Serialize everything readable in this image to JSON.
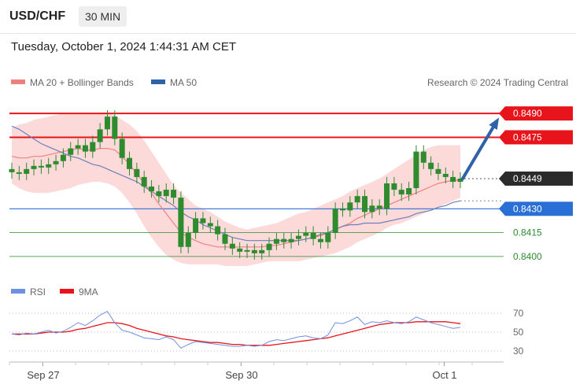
{
  "header": {
    "symbol": "USD/CHF",
    "timeframe": "30 MIN",
    "datetime": "Tuesday, October 1, 2024 1:44:31 AM CET"
  },
  "legend": {
    "ma20_label": "MA 20 + Bollinger Bands",
    "ma50_label": "MA 50",
    "copyright": "Research © 2024 Trading Central",
    "rsi_label": "RSI",
    "rsi_ma_label": "9MA"
  },
  "colors": {
    "resistance": "#e8141b",
    "support": "#2a6fd6",
    "target_green": "#2e8b2e",
    "candle": "#2e8b2e",
    "ma20": "#f08080",
    "bollinger": "#fbd4d4",
    "ma50": "#6f7fb8",
    "arrow": "#2f62a8",
    "rsi": "#6f8fe0",
    "rsi_ma": "#e8141b"
  },
  "chart_data": [
    {
      "type": "line",
      "title": "USD/CHF 30 MIN",
      "x_ticks": [
        "Sep 27",
        "Sep 30",
        "Oct 1"
      ],
      "ylim": [
        0.8394,
        0.8498
      ],
      "levels": [
        {
          "value": 0.849,
          "label": "0.8490",
          "style": "resistance"
        },
        {
          "value": 0.8475,
          "label": "0.8475",
          "style": "resistance"
        },
        {
          "value": 0.8449,
          "label": "0.8449",
          "style": "current"
        },
        {
          "value": 0.843,
          "label": "0.8430",
          "style": "support"
        },
        {
          "value": 0.8415,
          "label": "0.8415",
          "style": "target"
        },
        {
          "value": 0.84,
          "label": "0.8400",
          "style": "target"
        }
      ],
      "close": [
        0.8453,
        0.8452,
        0.8455,
        0.8457,
        0.8456,
        0.8458,
        0.846,
        0.8464,
        0.8468,
        0.847,
        0.8466,
        0.8472,
        0.848,
        0.8488,
        0.8474,
        0.8462,
        0.8455,
        0.845,
        0.8444,
        0.8441,
        0.8438,
        0.8442,
        0.8437,
        0.8406,
        0.8415,
        0.8424,
        0.8421,
        0.8419,
        0.8414,
        0.8408,
        0.8405,
        0.8403,
        0.8404,
        0.8402,
        0.8404,
        0.8408,
        0.8411,
        0.8409,
        0.8411,
        0.8413,
        0.8415,
        0.8411,
        0.8409,
        0.8415,
        0.843,
        0.8429,
        0.8434,
        0.8438,
        0.8428,
        0.8432,
        0.843,
        0.8446,
        0.8442,
        0.8439,
        0.8443,
        0.8466,
        0.8459,
        0.8455,
        0.8452,
        0.845,
        0.8447,
        0.8449
      ],
      "ma20": [
        0.8463,
        0.8462,
        0.8462,
        0.8463,
        0.8463,
        0.8464,
        0.8465,
        0.8466,
        0.8467,
        0.8468,
        0.8467,
        0.8467,
        0.8468,
        0.8468,
        0.8467,
        0.8463,
        0.8458,
        0.8452,
        0.8446,
        0.844,
        0.8433,
        0.8427,
        0.8421,
        0.8415,
        0.8412,
        0.841,
        0.8408,
        0.8407,
        0.8406,
        0.8406,
        0.8406,
        0.8406,
        0.8406,
        0.8406,
        0.8406,
        0.8407,
        0.8407,
        0.8408,
        0.8409,
        0.841,
        0.8411,
        0.8412,
        0.8413,
        0.8415,
        0.8417,
        0.8419,
        0.8421,
        0.8424,
        0.8426,
        0.8428,
        0.843,
        0.8432,
        0.8434,
        0.8436,
        0.8438,
        0.844,
        0.8442,
        0.8444,
        0.8446,
        0.8447,
        0.8448,
        0.8448
      ],
      "bb_upper": [
        0.8481,
        0.8483,
        0.8484,
        0.8486,
        0.8487,
        0.8488,
        0.8489,
        0.849,
        0.849,
        0.849,
        0.849,
        0.849,
        0.849,
        0.849,
        0.8489,
        0.8486,
        0.8483,
        0.8479,
        0.8473,
        0.8466,
        0.8459,
        0.8452,
        0.8445,
        0.844,
        0.8436,
        0.8432,
        0.843,
        0.8428,
        0.8425,
        0.8422,
        0.842,
        0.8418,
        0.8417,
        0.8418,
        0.8419,
        0.842,
        0.8421,
        0.8423,
        0.8425,
        0.8427,
        0.8428,
        0.843,
        0.8432,
        0.8434,
        0.8436,
        0.8438,
        0.8441,
        0.8443,
        0.8445,
        0.8447,
        0.8449,
        0.8452,
        0.8455,
        0.8458,
        0.8461,
        0.8464,
        0.8467,
        0.8469,
        0.847,
        0.847,
        0.847,
        0.847
      ],
      "bb_lower": [
        0.8446,
        0.8443,
        0.8441,
        0.844,
        0.844,
        0.844,
        0.8441,
        0.8442,
        0.8443,
        0.8445,
        0.8446,
        0.8447,
        0.8447,
        0.8446,
        0.8444,
        0.844,
        0.8434,
        0.8427,
        0.8419,
        0.8412,
        0.8406,
        0.8401,
        0.8398,
        0.8396,
        0.8395,
        0.8395,
        0.8395,
        0.8395,
        0.8395,
        0.8394,
        0.8394,
        0.8394,
        0.8394,
        0.8395,
        0.8396,
        0.8397,
        0.8397,
        0.8397,
        0.8397,
        0.8397,
        0.8398,
        0.8399,
        0.84,
        0.8401,
        0.8402,
        0.8404,
        0.8406,
        0.8409,
        0.8411,
        0.8413,
        0.8415,
        0.8418,
        0.842,
        0.8421,
        0.8423,
        0.8425,
        0.8427,
        0.8429,
        0.8431,
        0.8433,
        0.8435,
        0.8437
      ],
      "ma50": [
        0.8482,
        0.848,
        0.8477,
        0.8474,
        0.8471,
        0.8469,
        0.8467,
        0.8465,
        0.8463,
        0.8462,
        0.846,
        0.8458,
        0.8457,
        0.8455,
        0.8453,
        0.8451,
        0.8449,
        0.8447,
        0.8444,
        0.8441,
        0.8438,
        0.8435,
        0.8432,
        0.8428,
        0.8425,
        0.8423,
        0.842,
        0.8418,
        0.8416,
        0.8414,
        0.8412,
        0.8411,
        0.841,
        0.841,
        0.841,
        0.841,
        0.841,
        0.841,
        0.841,
        0.841,
        0.8411,
        0.8412,
        0.8414,
        0.8415,
        0.8417,
        0.8419,
        0.842,
        0.842,
        0.8421,
        0.8421,
        0.8421,
        0.8422,
        0.8423,
        0.8424,
        0.8425,
        0.8427,
        0.8428,
        0.8429,
        0.8431,
        0.8432,
        0.8434,
        0.8435
      ],
      "projection": {
        "from": 0.8449,
        "to": 0.8488
      }
    },
    {
      "type": "line",
      "title": "RSI",
      "ylim": [
        20,
        80
      ],
      "y_ticks": [
        70,
        50,
        30
      ],
      "series": [
        {
          "name": "RSI",
          "values": [
            48,
            47,
            49,
            48,
            50,
            52,
            49,
            51,
            55,
            60,
            57,
            62,
            68,
            72,
            60,
            52,
            50,
            47,
            44,
            43,
            42,
            45,
            42,
            33,
            37,
            40,
            39,
            38,
            37,
            36,
            35,
            35,
            36,
            35,
            36,
            40,
            42,
            41,
            43,
            45,
            46,
            44,
            43,
            47,
            60,
            59,
            62,
            66,
            58,
            61,
            60,
            62,
            60,
            59,
            61,
            66,
            63,
            60,
            58,
            56,
            54,
            55
          ]
        },
        {
          "name": "9MA",
          "values": [
            48,
            48,
            48,
            48,
            49,
            50,
            50,
            50,
            51,
            53,
            54,
            56,
            58,
            60,
            60,
            59,
            57,
            54,
            52,
            50,
            48,
            46,
            45,
            43,
            42,
            41,
            40,
            39,
            39,
            38,
            37,
            37,
            36,
            36,
            36,
            36,
            37,
            38,
            39,
            40,
            41,
            42,
            43,
            44,
            46,
            48,
            50,
            52,
            54,
            56,
            58,
            59,
            60,
            60,
            60,
            61,
            61,
            61,
            61,
            61,
            60,
            59
          ]
        }
      ]
    }
  ]
}
